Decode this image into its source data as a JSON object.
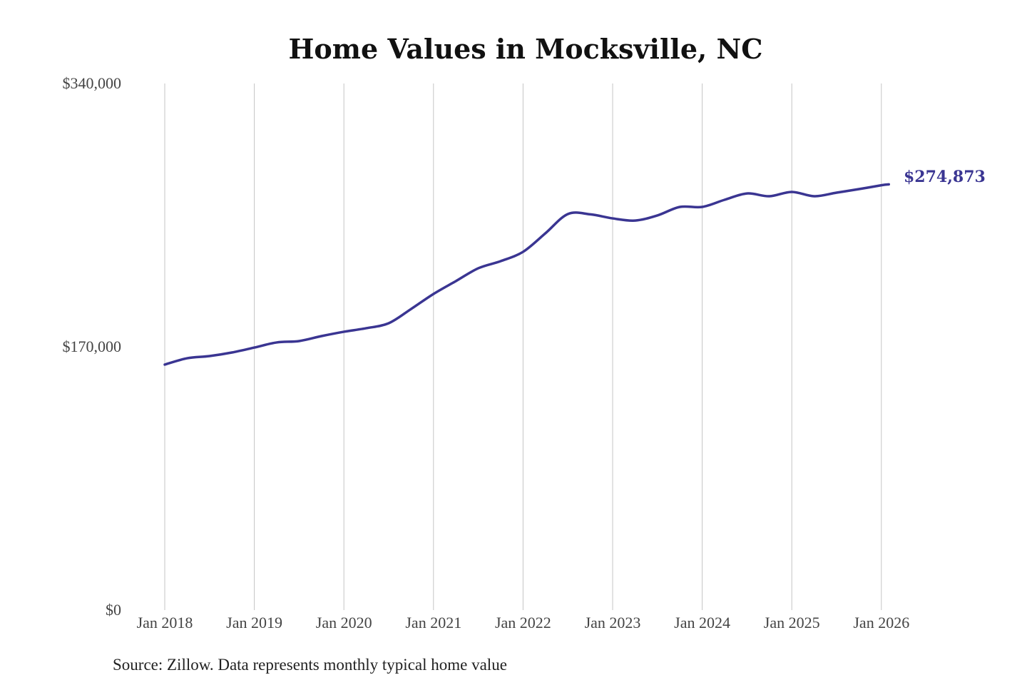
{
  "chart_data": {
    "type": "line",
    "title": "Home Values in Mocksville, NC",
    "source": "Source: Zillow. Data represents monthly typical home value",
    "ylim": [
      0,
      340000
    ],
    "y_ticks": [
      0,
      170000,
      340000
    ],
    "y_tick_labels": [
      "$0",
      "$170,000",
      "$340,000"
    ],
    "x_ticks": [
      "2018-01",
      "2019-01",
      "2020-01",
      "2021-01",
      "2022-01",
      "2023-01",
      "2024-01",
      "2025-01",
      "2026-01"
    ],
    "x_tick_labels": [
      "Jan 2018",
      "Jan 2019",
      "Jan 2020",
      "Jan 2021",
      "Jan 2022",
      "Jan 2023",
      "Jan 2024",
      "Jan 2025",
      "Jan 2026"
    ],
    "grid": "vertical",
    "line_color": "#3a3592",
    "end_label": "$274,873",
    "x": [
      "2018-01",
      "2018-04",
      "2018-07",
      "2018-10",
      "2019-01",
      "2019-04",
      "2019-07",
      "2019-10",
      "2020-01",
      "2020-04",
      "2020-07",
      "2020-10",
      "2021-01",
      "2021-04",
      "2021-07",
      "2021-10",
      "2022-01",
      "2022-04",
      "2022-07",
      "2022-10",
      "2023-01",
      "2023-04",
      "2023-07",
      "2023-10",
      "2024-01",
      "2024-04",
      "2024-07",
      "2024-10",
      "2025-01",
      "2025-04",
      "2025-07",
      "2025-10",
      "2026-01",
      "2026-02"
    ],
    "values": [
      158500,
      162600,
      164000,
      166300,
      169500,
      172800,
      173700,
      176900,
      179700,
      182000,
      185200,
      194400,
      204100,
      212400,
      220700,
      225300,
      231300,
      243300,
      255700,
      255500,
      252900,
      251500,
      254800,
      260300,
      260300,
      264900,
      269000,
      267200,
      270000,
      267200,
      269500,
      271800,
      274300,
      274873
    ]
  }
}
